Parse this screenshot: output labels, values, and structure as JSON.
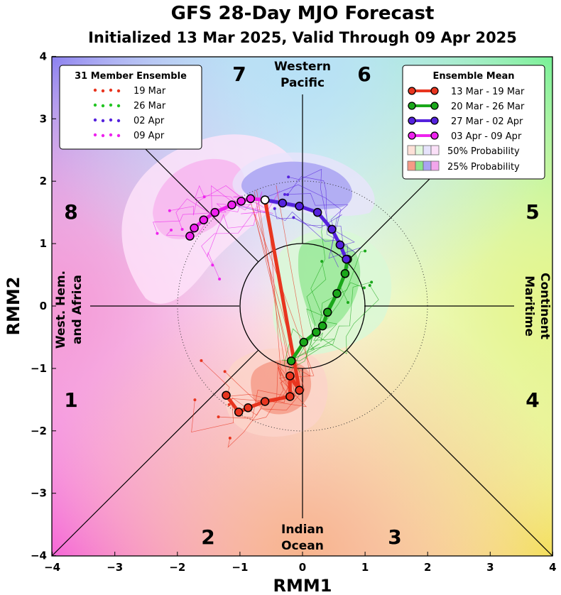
{
  "chart_data": {
    "type": "scatter",
    "title": "GFS 28-Day MJO Forecast",
    "subtitle": "Initialized 13 Mar 2025, Valid Through 09 Apr 2025",
    "xlabel": "RMM1",
    "ylabel": "RMM2",
    "xlim": [
      -4,
      4
    ],
    "ylim": [
      -4,
      4
    ],
    "x_ticks": [
      "−4",
      "−3",
      "−2",
      "−1",
      "0",
      "1",
      "2",
      "3",
      "4"
    ],
    "y_ticks": [
      "−4",
      "−3",
      "−2",
      "−1",
      "0",
      "1",
      "2",
      "3",
      "4"
    ],
    "phase_numbers": [
      "1",
      "2",
      "3",
      "4",
      "5",
      "6",
      "7",
      "8"
    ],
    "region_labels": {
      "top_line1": "Western",
      "top_line2": "Pacific",
      "bottom_line1": "Indian",
      "bottom_line2": "Ocean",
      "left_line1": "West. Hem.",
      "left_line2": "and Africa",
      "right_line1": "Maritime",
      "right_line2": "Continent"
    },
    "legend_left": {
      "title": "31 Member Ensemble",
      "entries": [
        {
          "label": "19 Mar",
          "color": "#e8351f"
        },
        {
          "label": "26 Mar",
          "color": "#22c422"
        },
        {
          "label": "02 Apr",
          "color": "#5522dd"
        },
        {
          "label": "09 Apr",
          "color": "#ee22ee"
        }
      ]
    },
    "legend_right": {
      "title": "Ensemble Mean",
      "entries": [
        {
          "label": "13 Mar - 19 Mar",
          "color": "#e8351f"
        },
        {
          "label": "20 Mar - 26 Mar",
          "color": "#1aa81a"
        },
        {
          "label": "27 Mar - 02 Apr",
          "color": "#5522dd"
        },
        {
          "label": "03 Apr - 09 Apr",
          "color": "#ee22ee"
        }
      ],
      "prob50": "50% Probability",
      "prob25": "25% Probability"
    },
    "series": [
      {
        "name": "13 Mar - 19 Mar",
        "color": "#e8351f",
        "points": [
          [
            -0.6,
            1.7
          ],
          [
            -0.05,
            -1.35
          ],
          [
            -0.2,
            -1.12
          ],
          [
            -0.2,
            -1.45
          ],
          [
            -0.6,
            -1.53
          ],
          [
            -0.87,
            -1.63
          ],
          [
            -1.02,
            -1.7
          ],
          [
            -1.22,
            -1.43
          ]
        ]
      },
      {
        "name": "20 Mar - 26 Mar",
        "color": "#1aa81a",
        "points": [
          [
            -0.18,
            -0.88
          ],
          [
            0.02,
            -0.58
          ],
          [
            0.22,
            -0.42
          ],
          [
            0.32,
            -0.32
          ],
          [
            0.4,
            -0.1
          ],
          [
            0.55,
            0.2
          ],
          [
            0.68,
            0.52
          ],
          [
            0.72,
            0.75
          ]
        ]
      },
      {
        "name": "27 Mar - 02 Apr",
        "color": "#5522dd",
        "points": [
          [
            0.7,
            0.75
          ],
          [
            0.6,
            0.98
          ],
          [
            0.47,
            1.23
          ],
          [
            0.24,
            1.5
          ],
          [
            -0.05,
            1.6
          ],
          [
            -0.32,
            1.65
          ],
          [
            -0.6,
            1.7
          ]
        ]
      },
      {
        "name": "03 Apr - 09 Apr",
        "color": "#ee22ee",
        "points": [
          [
            -0.6,
            1.7
          ],
          [
            -0.83,
            1.72
          ],
          [
            -0.98,
            1.68
          ],
          [
            -1.13,
            1.62
          ],
          [
            -1.4,
            1.5
          ],
          [
            -1.58,
            1.38
          ],
          [
            -1.73,
            1.25
          ],
          [
            -1.8,
            1.12
          ]
        ]
      }
    ],
    "start_point": [
      -0.6,
      1.7
    ],
    "grid": false
  }
}
